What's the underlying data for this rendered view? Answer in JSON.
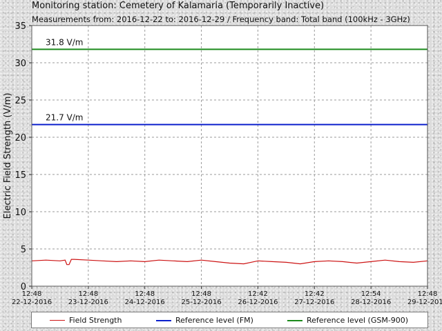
{
  "header": {
    "title": "Monitoring station: Cemetery of Kalamaria (Temporarily Inactive)",
    "subtitle": "Measurements from: 2016-12-22 to: 2016-12-29 / Frequency band: Total band (100kHz - 3GHz)"
  },
  "chart_data": {
    "type": "line",
    "ylabel": "Electric Field Strength (V/m)",
    "xlabel": "",
    "ylim": [
      0,
      35
    ],
    "y_ticks": [
      0,
      5,
      10,
      15,
      20,
      25,
      30,
      35
    ],
    "grid": true,
    "x_ticks": [
      {
        "time": "12:48",
        "date": "22-12-2016"
      },
      {
        "time": "12:48",
        "date": "23-12-2016"
      },
      {
        "time": "12:48",
        "date": "24-12-2016"
      },
      {
        "time": "12:48",
        "date": "25-12-2016"
      },
      {
        "time": "12:42",
        "date": "26-12-2016"
      },
      {
        "time": "12:42",
        "date": "27-12-2016"
      },
      {
        "time": "12:54",
        "date": "28-12-2016"
      },
      {
        "time": "12:48",
        "date": "29-12-2016"
      }
    ],
    "reference_lines": [
      {
        "name": "Reference level (GSM-900)",
        "value": 31.8,
        "label": "31.8 V/m",
        "color": "#1a8a1a"
      },
      {
        "name": "Reference level (FM)",
        "value": 21.7,
        "label": "21.7 V/m",
        "color": "#0a1ecc"
      }
    ],
    "series": [
      {
        "name": "Field Strength",
        "color": "#cc1111",
        "x": [
          0,
          0.25,
          0.5,
          0.59,
          0.62,
          0.66,
          0.7,
          0.75,
          1.0,
          1.25,
          1.5,
          1.75,
          2.0,
          2.25,
          2.5,
          2.75,
          3.0,
          3.25,
          3.5,
          3.75,
          4.0,
          4.25,
          4.5,
          4.75,
          5.0,
          5.25,
          5.5,
          5.75,
          6.0,
          6.25,
          6.5,
          6.75,
          7.0
        ],
        "values": [
          3.4,
          3.5,
          3.4,
          3.5,
          2.9,
          2.9,
          3.6,
          3.6,
          3.5,
          3.4,
          3.3,
          3.4,
          3.3,
          3.5,
          3.4,
          3.3,
          3.5,
          3.3,
          3.1,
          3.0,
          3.4,
          3.3,
          3.2,
          3.0,
          3.3,
          3.4,
          3.3,
          3.1,
          3.3,
          3.5,
          3.3,
          3.2,
          3.4
        ]
      }
    ]
  },
  "legend": {
    "items": [
      {
        "label": "Field Strength",
        "color": "#cc1111"
      },
      {
        "label": "Reference level (FM)",
        "color": "#0a1ecc"
      },
      {
        "label": "Reference level (GSM-900)",
        "color": "#1a8a1a"
      }
    ]
  }
}
